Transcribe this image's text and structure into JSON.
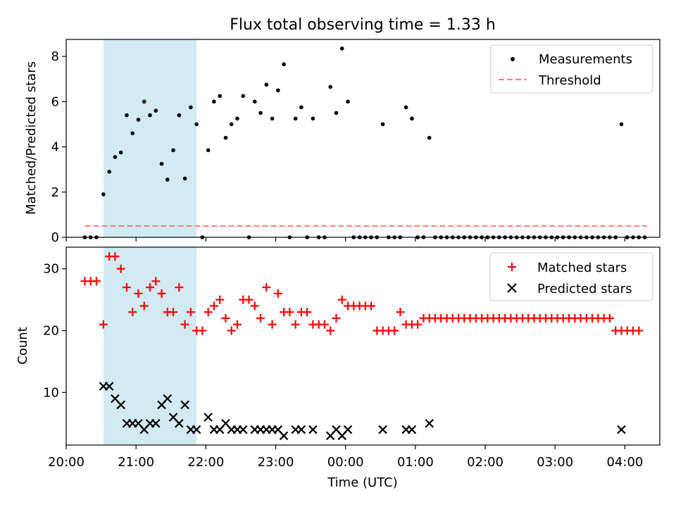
{
  "figure": {
    "suptitle": "Flux total observing time = 1.33 h"
  },
  "colors": {
    "shade": "#add8e6",
    "threshold": "#ff7f7f",
    "measurement": "#000000",
    "matched": "#ff0000",
    "predicted": "#000000"
  },
  "chart_data": [
    {
      "type": "scatter",
      "title": "Flux total observing time = 1.33 h",
      "xlabel": "",
      "ylabel": "Matched/Predicted stars",
      "xlim": [
        "20:00",
        "04:30"
      ],
      "ylim": [
        0,
        8.75
      ],
      "yticks": [
        0,
        2,
        4,
        6,
        8
      ],
      "grid": false,
      "legend_position": "top-right",
      "shaded_region": {
        "x_start": "20:32",
        "x_end": "21:52"
      },
      "series": [
        {
          "name": "Measurements",
          "kind": "points",
          "color": "#000000",
          "points": [
            [
              "20:16",
              0
            ],
            [
              "20:21",
              0
            ],
            [
              "20:26",
              0
            ],
            [
              "20:32",
              1.9
            ],
            [
              "20:37",
              2.9
            ],
            [
              "20:42",
              3.55
            ],
            [
              "20:47",
              3.75
            ],
            [
              "20:52",
              5.4
            ],
            [
              "20:57",
              4.6
            ],
            [
              "21:02",
              5.2
            ],
            [
              "21:07",
              6.0
            ],
            [
              "21:12",
              5.4
            ],
            [
              "21:17",
              5.6
            ],
            [
              "21:22",
              3.25
            ],
            [
              "21:27",
              2.55
            ],
            [
              "21:32",
              3.85
            ],
            [
              "21:37",
              5.4
            ],
            [
              "21:42",
              2.6
            ],
            [
              "21:47",
              5.75
            ],
            [
              "21:52",
              5.0
            ],
            [
              "21:57",
              0
            ],
            [
              "22:02",
              3.85
            ],
            [
              "22:07",
              6.0
            ],
            [
              "22:12",
              6.25
            ],
            [
              "22:17",
              4.4
            ],
            [
              "22:22",
              5.0
            ],
            [
              "22:27",
              5.25
            ],
            [
              "22:32",
              6.25
            ],
            [
              "22:37",
              0
            ],
            [
              "22:42",
              6.0
            ],
            [
              "22:47",
              5.5
            ],
            [
              "22:52",
              6.75
            ],
            [
              "22:57",
              5.25
            ],
            [
              "23:02",
              6.5
            ],
            [
              "23:07",
              7.65
            ],
            [
              "23:12",
              0
            ],
            [
              "23:17",
              5.25
            ],
            [
              "23:22",
              5.75
            ],
            [
              "23:27",
              0
            ],
            [
              "23:32",
              5.25
            ],
            [
              "23:37",
              0
            ],
            [
              "23:42",
              0
            ],
            [
              "23:47",
              6.65
            ],
            [
              "23:52",
              5.5
            ],
            [
              "23:57",
              8.35
            ],
            [
              "00:02",
              6.0
            ],
            [
              "00:07",
              0
            ],
            [
              "00:12",
              0
            ],
            [
              "00:17",
              0
            ],
            [
              "00:22",
              0
            ],
            [
              "00:27",
              0
            ],
            [
              "00:32",
              5.0
            ],
            [
              "00:37",
              0
            ],
            [
              "00:42",
              0
            ],
            [
              "00:47",
              0
            ],
            [
              "00:52",
              5.75
            ],
            [
              "00:57",
              5.25
            ],
            [
              "01:02",
              0
            ],
            [
              "01:07",
              0
            ],
            [
              "01:12",
              4.4
            ],
            [
              "01:17",
              0
            ],
            [
              "01:22",
              0
            ],
            [
              "01:27",
              0
            ],
            [
              "01:32",
              0
            ],
            [
              "01:37",
              0
            ],
            [
              "01:42",
              0
            ],
            [
              "01:47",
              0
            ],
            [
              "01:52",
              0
            ],
            [
              "01:57",
              0
            ],
            [
              "02:02",
              0
            ],
            [
              "02:07",
              0
            ],
            [
              "02:12",
              0
            ],
            [
              "02:17",
              0
            ],
            [
              "02:22",
              0
            ],
            [
              "02:27",
              0
            ],
            [
              "02:32",
              0
            ],
            [
              "02:37",
              0
            ],
            [
              "02:42",
              0
            ],
            [
              "02:47",
              0
            ],
            [
              "02:52",
              0
            ],
            [
              "02:57",
              0
            ],
            [
              "03:02",
              0
            ],
            [
              "03:07",
              0
            ],
            [
              "03:12",
              0
            ],
            [
              "03:17",
              0
            ],
            [
              "03:22",
              0
            ],
            [
              "03:27",
              0
            ],
            [
              "03:32",
              0
            ],
            [
              "03:37",
              0
            ],
            [
              "03:42",
              0
            ],
            [
              "03:47",
              0
            ],
            [
              "03:52",
              0
            ],
            [
              "03:57",
              5.0
            ],
            [
              "04:02",
              0
            ],
            [
              "04:07",
              0
            ],
            [
              "04:12",
              0
            ],
            [
              "04:17",
              0
            ]
          ]
        },
        {
          "name": "Threshold",
          "kind": "dashed-line",
          "color": "#ff7f7f",
          "points": [
            [
              "20:16",
              0.5
            ],
            [
              "04:19",
              0.5
            ]
          ]
        }
      ]
    },
    {
      "type": "scatter",
      "title": "",
      "xlabel": "Time (UTC)",
      "ylabel": "Count",
      "xlim": [
        "20:00",
        "04:30"
      ],
      "ylim": [
        1.5,
        33.5
      ],
      "yticks": [
        10,
        20,
        30
      ],
      "xticks": [
        "20:00",
        "21:00",
        "22:00",
        "23:00",
        "00:00",
        "01:00",
        "02:00",
        "03:00",
        "04:00"
      ],
      "grid": false,
      "legend_position": "top-right",
      "shaded_region": {
        "x_start": "20:32",
        "x_end": "21:52"
      },
      "series": [
        {
          "name": "Matched stars",
          "kind": "plus",
          "color": "#ff0000",
          "points": [
            [
              "20:16",
              28
            ],
            [
              "20:21",
              28
            ],
            [
              "20:26",
              28
            ],
            [
              "20:32",
              21
            ],
            [
              "20:37",
              32
            ],
            [
              "20:42",
              32
            ],
            [
              "20:47",
              30
            ],
            [
              "20:52",
              27
            ],
            [
              "20:57",
              23
            ],
            [
              "21:02",
              26
            ],
            [
              "21:07",
              24
            ],
            [
              "21:12",
              27
            ],
            [
              "21:17",
              28
            ],
            [
              "21:22",
              26
            ],
            [
              "21:27",
              23
            ],
            [
              "21:32",
              23
            ],
            [
              "21:37",
              27
            ],
            [
              "21:42",
              21
            ],
            [
              "21:47",
              23
            ],
            [
              "21:52",
              20
            ],
            [
              "21:57",
              20
            ],
            [
              "22:02",
              23
            ],
            [
              "22:07",
              24
            ],
            [
              "22:12",
              25
            ],
            [
              "22:17",
              22
            ],
            [
              "22:22",
              20
            ],
            [
              "22:27",
              21
            ],
            [
              "22:32",
              25
            ],
            [
              "22:37",
              25
            ],
            [
              "22:42",
              24
            ],
            [
              "22:47",
              22
            ],
            [
              "22:52",
              27
            ],
            [
              "22:57",
              21
            ],
            [
              "23:02",
              26
            ],
            [
              "23:07",
              23
            ],
            [
              "23:12",
              23
            ],
            [
              "23:17",
              21
            ],
            [
              "23:22",
              23
            ],
            [
              "23:27",
              23
            ],
            [
              "23:32",
              21
            ],
            [
              "23:37",
              21
            ],
            [
              "23:42",
              21
            ],
            [
              "23:47",
              20
            ],
            [
              "23:52",
              22
            ],
            [
              "23:57",
              25
            ],
            [
              "00:02",
              24
            ],
            [
              "00:07",
              24
            ],
            [
              "00:12",
              24
            ],
            [
              "00:17",
              24
            ],
            [
              "00:22",
              24
            ],
            [
              "00:27",
              20
            ],
            [
              "00:32",
              20
            ],
            [
              "00:37",
              20
            ],
            [
              "00:42",
              20
            ],
            [
              "00:47",
              23
            ],
            [
              "00:52",
              21
            ],
            [
              "00:57",
              21
            ],
            [
              "01:02",
              21
            ],
            [
              "01:07",
              22
            ],
            [
              "01:12",
              22
            ],
            [
              "01:17",
              22
            ],
            [
              "01:22",
              22
            ],
            [
              "01:27",
              22
            ],
            [
              "01:32",
              22
            ],
            [
              "01:37",
              22
            ],
            [
              "01:42",
              22
            ],
            [
              "01:47",
              22
            ],
            [
              "01:52",
              22
            ],
            [
              "01:57",
              22
            ],
            [
              "02:02",
              22
            ],
            [
              "02:07",
              22
            ],
            [
              "02:12",
              22
            ],
            [
              "02:17",
              22
            ],
            [
              "02:22",
              22
            ],
            [
              "02:27",
              22
            ],
            [
              "02:32",
              22
            ],
            [
              "02:37",
              22
            ],
            [
              "02:42",
              22
            ],
            [
              "02:47",
              22
            ],
            [
              "02:52",
              22
            ],
            [
              "02:57",
              22
            ],
            [
              "03:02",
              22
            ],
            [
              "03:07",
              22
            ],
            [
              "03:12",
              22
            ],
            [
              "03:17",
              22
            ],
            [
              "03:22",
              22
            ],
            [
              "03:27",
              22
            ],
            [
              "03:32",
              22
            ],
            [
              "03:37",
              22
            ],
            [
              "03:42",
              22
            ],
            [
              "03:47",
              22
            ],
            [
              "03:52",
              20
            ],
            [
              "03:57",
              20
            ],
            [
              "04:02",
              20
            ],
            [
              "04:07",
              20
            ],
            [
              "04:12",
              20
            ]
          ]
        },
        {
          "name": "Predicted stars",
          "kind": "x",
          "color": "#000000",
          "points": [
            [
              "20:32",
              11
            ],
            [
              "20:37",
              11
            ],
            [
              "20:42",
              9
            ],
            [
              "20:47",
              8
            ],
            [
              "20:52",
              5
            ],
            [
              "20:57",
              5
            ],
            [
              "21:02",
              5
            ],
            [
              "21:07",
              4
            ],
            [
              "21:12",
              5
            ],
            [
              "21:17",
              5
            ],
            [
              "21:22",
              8
            ],
            [
              "21:27",
              9
            ],
            [
              "21:32",
              6
            ],
            [
              "21:37",
              5
            ],
            [
              "21:42",
              8
            ],
            [
              "21:47",
              4
            ],
            [
              "21:52",
              4
            ],
            [
              "22:02",
              6
            ],
            [
              "22:07",
              4
            ],
            [
              "22:12",
              4
            ],
            [
              "22:17",
              5
            ],
            [
              "22:22",
              4
            ],
            [
              "22:27",
              4
            ],
            [
              "22:32",
              4
            ],
            [
              "22:42",
              4
            ],
            [
              "22:47",
              4
            ],
            [
              "22:52",
              4
            ],
            [
              "22:57",
              4
            ],
            [
              "23:02",
              4
            ],
            [
              "23:07",
              3
            ],
            [
              "23:17",
              4
            ],
            [
              "23:22",
              4
            ],
            [
              "23:32",
              4
            ],
            [
              "23:47",
              3
            ],
            [
              "23:52",
              4
            ],
            [
              "23:57",
              3
            ],
            [
              "00:02",
              4
            ],
            [
              "00:32",
              4
            ],
            [
              "00:52",
              4
            ],
            [
              "00:57",
              4
            ],
            [
              "01:12",
              5
            ],
            [
              "03:57",
              4
            ]
          ]
        }
      ]
    }
  ]
}
